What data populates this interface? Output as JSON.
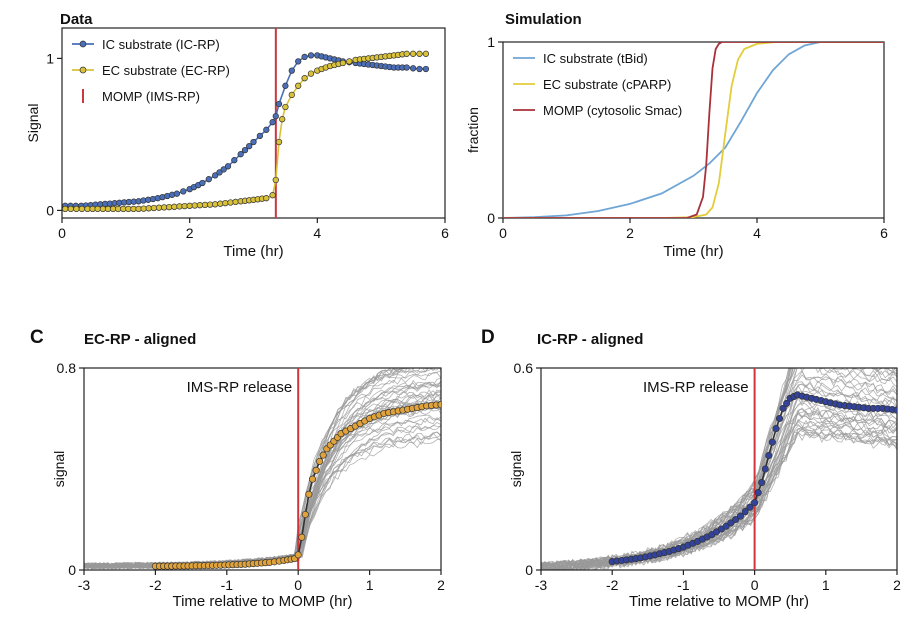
{
  "chart_data": [
    {
      "id": "A",
      "type": "line",
      "panel_label": "",
      "title": "Data",
      "xlabel": "Time (hr)",
      "ylabel": "Signal",
      "xlim": [
        0,
        6
      ],
      "ylim": [
        -0.05,
        1.2
      ],
      "xticks": [
        "0",
        "2",
        "4",
        "6"
      ],
      "yticks": [
        "0",
        "1"
      ],
      "legend": "top-left",
      "colors": {
        "ic": "#4a6fb8",
        "ec": "#d9c239",
        "momp": "#c8383f"
      },
      "series": [
        {
          "name": "IC substrate (IC-RP)",
          "key": "ic",
          "x": [
            0.05,
            0.3,
            0.6,
            0.9,
            1.2,
            1.5,
            1.8,
            2.0,
            2.2,
            2.4,
            2.6,
            2.8,
            3.0,
            3.1,
            3.2,
            3.3,
            3.35,
            3.4,
            3.5,
            3.6,
            3.7,
            3.8,
            3.9,
            4.0,
            4.2,
            4.4,
            4.6,
            4.8,
            5.0,
            5.2,
            5.4,
            5.6,
            5.7
          ],
          "values": [
            0.03,
            0.03,
            0.04,
            0.05,
            0.06,
            0.08,
            0.11,
            0.14,
            0.18,
            0.23,
            0.29,
            0.37,
            0.45,
            0.49,
            0.53,
            0.58,
            0.62,
            0.7,
            0.82,
            0.92,
            0.98,
            1.01,
            1.02,
            1.02,
            1.0,
            0.98,
            0.97,
            0.96,
            0.95,
            0.94,
            0.94,
            0.93,
            0.93
          ]
        },
        {
          "name": "EC substrate (EC-RP)",
          "key": "ec",
          "x": [
            0.05,
            0.4,
            0.8,
            1.2,
            1.6,
            2.0,
            2.4,
            2.8,
            3.0,
            3.2,
            3.3,
            3.35,
            3.4,
            3.45,
            3.5,
            3.6,
            3.7,
            3.8,
            3.9,
            4.0,
            4.2,
            4.4,
            4.6,
            4.8,
            5.0,
            5.2,
            5.4,
            5.6,
            5.7
          ],
          "values": [
            0.01,
            0.01,
            0.01,
            0.01,
            0.02,
            0.03,
            0.04,
            0.06,
            0.07,
            0.08,
            0.1,
            0.2,
            0.45,
            0.6,
            0.68,
            0.76,
            0.82,
            0.87,
            0.9,
            0.92,
            0.95,
            0.97,
            0.99,
            1.0,
            1.01,
            1.02,
            1.03,
            1.03,
            1.03
          ]
        }
      ],
      "vline": {
        "name": "MOMP (IMS-RP)",
        "key": "momp",
        "x": 3.35
      }
    },
    {
      "id": "B",
      "type": "line",
      "panel_label": "",
      "title": "Simulation",
      "xlabel": "Time (hr)",
      "ylabel": "fraction",
      "xlim": [
        0,
        6
      ],
      "ylim": [
        0,
        1
      ],
      "xticks": [
        "0",
        "2",
        "4",
        "6"
      ],
      "yticks": [
        "0",
        "1"
      ],
      "legend": "top-left",
      "colors": {
        "ic": "#6fa6d6",
        "ec": "#e3cd3a",
        "momp": "#a8323a"
      },
      "series": [
        {
          "name": "IC substrate (tBid)",
          "key": "ic",
          "x": [
            0,
            0.5,
            1.0,
            1.5,
            2.0,
            2.5,
            3.0,
            3.25,
            3.5,
            3.75,
            4.0,
            4.25,
            4.5,
            4.75,
            5.0,
            5.5,
            6.0
          ],
          "values": [
            0.0,
            0.005,
            0.015,
            0.04,
            0.08,
            0.14,
            0.24,
            0.31,
            0.4,
            0.55,
            0.71,
            0.84,
            0.93,
            0.98,
            1.0,
            1.0,
            1.0
          ]
        },
        {
          "name": "EC substrate (cPARP)",
          "key": "ec",
          "x": [
            0,
            2.5,
            3.0,
            3.2,
            3.3,
            3.4,
            3.5,
            3.6,
            3.7,
            3.8,
            4.0,
            4.3,
            6.0
          ],
          "values": [
            0,
            0,
            0.005,
            0.02,
            0.06,
            0.2,
            0.48,
            0.75,
            0.9,
            0.96,
            0.99,
            1.0,
            1.0
          ]
        },
        {
          "name": "MOMP (cytosolic Smac)",
          "key": "momp",
          "x": [
            0,
            2.9,
            3.05,
            3.15,
            3.2,
            3.25,
            3.3,
            3.35,
            3.4,
            3.45,
            3.6,
            6.0
          ],
          "values": [
            0,
            0,
            0.02,
            0.12,
            0.3,
            0.6,
            0.85,
            0.96,
            0.99,
            1.0,
            1.0,
            1.0
          ]
        }
      ]
    },
    {
      "id": "C",
      "type": "line",
      "panel_label": "C",
      "title": "EC-RP - aligned",
      "xlabel": "Time relative to MOMP (hr)",
      "ylabel": "signal",
      "xlim": [
        -3,
        2
      ],
      "ylim": [
        0,
        0.8
      ],
      "xticks": [
        "-3",
        "-2",
        "-1",
        "0",
        "1",
        "2"
      ],
      "yticks": [
        "0",
        "0.8"
      ],
      "annotation": "IMS-RP release",
      "colors": {
        "mean": "#e0a23a",
        "traces": "#9a9a9a",
        "momp": "#d2343c"
      },
      "series": [
        {
          "name": "",
          "key": "mean",
          "x": [
            -2.0,
            -1.6,
            -1.2,
            -0.8,
            -0.4,
            -0.2,
            -0.05,
            0.0,
            0.05,
            0.1,
            0.15,
            0.2,
            0.3,
            0.4,
            0.5,
            0.6,
            0.8,
            1.0,
            1.2,
            1.4,
            1.6,
            1.8,
            2.0
          ],
          "values": [
            0.015,
            0.016,
            0.018,
            0.022,
            0.03,
            0.038,
            0.045,
            0.06,
            0.13,
            0.22,
            0.3,
            0.36,
            0.43,
            0.48,
            0.51,
            0.54,
            0.57,
            0.6,
            0.62,
            0.63,
            0.64,
            0.65,
            0.655
          ]
        }
      ],
      "vline": {
        "x": 0
      }
    },
    {
      "id": "D",
      "type": "line",
      "panel_label": "D",
      "title": "IC-RP - aligned",
      "xlabel": "Time relative to MOMP (hr)",
      "ylabel": "signal",
      "xlim": [
        -3,
        2
      ],
      "ylim": [
        0,
        0.6
      ],
      "xticks": [
        "-3",
        "-2",
        "-1",
        "0",
        "1",
        "2"
      ],
      "yticks": [
        "0",
        "0.6"
      ],
      "annotation": "IMS-RP release",
      "colors": {
        "mean": "#34439a",
        "traces": "#9a9a9a",
        "momp": "#d2343c"
      },
      "series": [
        {
          "name": "",
          "key": "mean",
          "x": [
            -2.0,
            -1.8,
            -1.6,
            -1.4,
            -1.2,
            -1.0,
            -0.8,
            -0.6,
            -0.4,
            -0.2,
            0.0,
            0.1,
            0.2,
            0.3,
            0.4,
            0.5,
            0.6,
            0.8,
            1.0,
            1.2,
            1.4,
            1.6,
            1.8,
            2.0
          ],
          "values": [
            0.025,
            0.03,
            0.036,
            0.045,
            0.055,
            0.068,
            0.085,
            0.105,
            0.13,
            0.16,
            0.2,
            0.26,
            0.34,
            0.42,
            0.48,
            0.51,
            0.52,
            0.51,
            0.5,
            0.49,
            0.485,
            0.48,
            0.48,
            0.475
          ]
        }
      ],
      "vline": {
        "x": 0
      }
    }
  ]
}
